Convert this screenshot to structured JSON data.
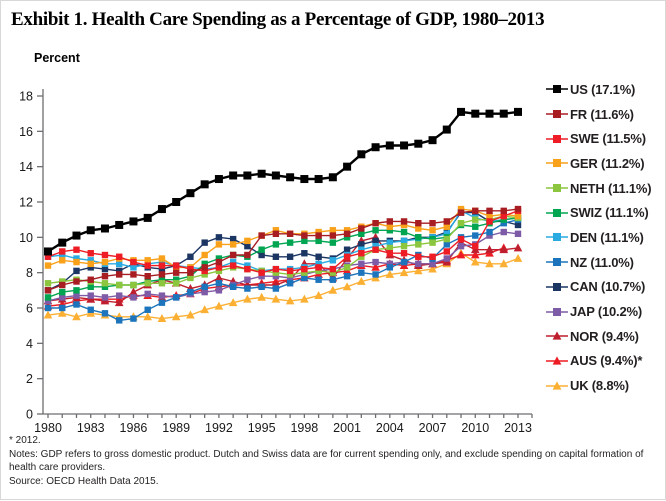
{
  "footnotes": {
    "asterisk": "* 2012.",
    "notes": "Notes: GDP refers to gross domestic product. Dutch and Swiss data are for current spending only, and exclude spending on capital formation of health care providers.",
    "source": "Source: OECD Health Data 2015."
  },
  "chart_data": {
    "type": "line",
    "title": "Exhibit 1. Health Care Spending as a Percentage of GDP, 1980–2013",
    "ylabel": "Percent",
    "xlabel": "",
    "ylim": [
      0,
      18
    ],
    "grid": false,
    "legend_position": "right",
    "x": [
      1980,
      1981,
      1982,
      1983,
      1984,
      1985,
      1986,
      1987,
      1988,
      1989,
      1990,
      1991,
      1992,
      1993,
      1994,
      1995,
      1996,
      1997,
      1998,
      1999,
      2000,
      2001,
      2002,
      2003,
      2004,
      2005,
      2006,
      2007,
      2008,
      2009,
      2010,
      2011,
      2012,
      2013
    ],
    "x_tick_labels": [
      "1980",
      "1983",
      "1986",
      "1989",
      "1992",
      "1995",
      "1998",
      "2001",
      "2004",
      "2007",
      "2010",
      "2013"
    ],
    "y_ticks": [
      0,
      2,
      4,
      6,
      8,
      10,
      12,
      14,
      16,
      18
    ],
    "series": [
      {
        "name": "US",
        "label": "US (17.1%)",
        "color": "#000000",
        "marker": "square",
        "values": [
          9.2,
          9.7,
          10.1,
          10.4,
          10.5,
          10.7,
          10.9,
          11.1,
          11.6,
          12.0,
          12.5,
          13.0,
          13.3,
          13.5,
          13.5,
          13.6,
          13.5,
          13.4,
          13.3,
          13.3,
          13.4,
          14.0,
          14.7,
          15.1,
          15.2,
          15.2,
          15.3,
          15.5,
          16.1,
          17.1,
          17.0,
          17.0,
          17.0,
          17.1
        ]
      },
      {
        "name": "FR",
        "label": "FR (11.6%)",
        "color": "#A81D22",
        "marker": "square",
        "values": [
          7.0,
          7.3,
          7.5,
          7.6,
          7.8,
          7.9,
          7.9,
          7.8,
          7.9,
          8.0,
          8.0,
          8.3,
          8.6,
          9.0,
          9.0,
          10.1,
          10.2,
          10.2,
          10.1,
          10.1,
          10.1,
          10.2,
          10.5,
          10.8,
          10.9,
          10.9,
          10.8,
          10.8,
          10.9,
          11.4,
          11.5,
          11.5,
          11.5,
          11.6
        ]
      },
      {
        "name": "SWE",
        "label": "SWE (11.5%)",
        "color": "#EE1C25",
        "marker": "square",
        "values": [
          8.9,
          9.2,
          9.3,
          9.1,
          9.0,
          8.9,
          8.6,
          8.4,
          8.4,
          8.4,
          8.2,
          8.1,
          8.3,
          8.4,
          8.2,
          8.0,
          8.2,
          8.1,
          8.2,
          8.3,
          8.2,
          8.9,
          9.1,
          9.3,
          9.1,
          9.1,
          8.9,
          8.9,
          9.2,
          9.9,
          9.5,
          10.9,
          11.2,
          11.5
        ]
      },
      {
        "name": "GER",
        "label": "GER (11.2%)",
        "color": "#F9A11B",
        "marker": "square",
        "values": [
          8.4,
          8.7,
          8.6,
          8.5,
          8.6,
          8.8,
          8.7,
          8.7,
          8.8,
          8.3,
          8.3,
          9.0,
          9.6,
          9.6,
          9.8,
          10.1,
          10.4,
          10.2,
          10.2,
          10.3,
          10.4,
          10.4,
          10.6,
          10.8,
          10.6,
          10.7,
          10.5,
          10.4,
          10.6,
          11.6,
          11.5,
          11.2,
          11.3,
          11.2
        ]
      },
      {
        "name": "NETH",
        "label": "NETH (11.1%)",
        "color": "#8CC63F",
        "marker": "square",
        "values": [
          7.4,
          7.5,
          7.6,
          7.5,
          7.4,
          7.3,
          7.3,
          7.4,
          7.4,
          7.4,
          7.7,
          7.9,
          8.1,
          8.3,
          8.2,
          8.1,
          8.0,
          7.9,
          8.0,
          8.1,
          8.0,
          8.3,
          8.9,
          9.3,
          9.4,
          9.5,
          9.6,
          9.7,
          9.9,
          10.8,
          11.0,
          11.0,
          11.2,
          11.1
        ]
      },
      {
        "name": "SWIZ",
        "label": "SWIZ (11.1%)",
        "color": "#00A551",
        "marker": "square",
        "values": [
          6.6,
          6.9,
          7.0,
          7.2,
          7.2,
          7.3,
          7.3,
          7.5,
          7.6,
          7.6,
          7.8,
          8.5,
          8.8,
          9.0,
          8.9,
          9.3,
          9.6,
          9.7,
          9.8,
          9.8,
          9.7,
          10.0,
          10.2,
          10.4,
          10.4,
          10.3,
          10.0,
          9.9,
          10.0,
          10.7,
          10.6,
          10.8,
          11.0,
          11.1
        ]
      },
      {
        "name": "DEN",
        "label": "DEN (11.1%)",
        "color": "#29ABE2",
        "marker": "square",
        "values": [
          8.9,
          9.0,
          8.8,
          8.7,
          8.5,
          8.5,
          8.3,
          8.5,
          8.6,
          8.4,
          8.3,
          8.2,
          8.3,
          8.6,
          8.4,
          8.1,
          8.2,
          8.2,
          8.3,
          8.5,
          8.7,
          9.0,
          9.3,
          9.5,
          9.7,
          9.8,
          9.9,
          10.0,
          10.2,
          11.5,
          11.1,
          10.9,
          11.0,
          11.1
        ]
      },
      {
        "name": "NZ",
        "label": "NZ (11.0%)",
        "color": "#1C75BC",
        "marker": "square",
        "values": [
          6.0,
          6.0,
          6.2,
          5.9,
          5.7,
          5.3,
          5.4,
          5.9,
          6.3,
          6.6,
          6.9,
          7.2,
          7.4,
          7.2,
          7.1,
          7.2,
          7.1,
          7.4,
          7.7,
          7.6,
          7.6,
          7.8,
          8.0,
          7.9,
          8.3,
          8.6,
          9.0,
          8.8,
          9.6,
          10.0,
          10.1,
          10.3,
          10.8,
          11.0
        ]
      },
      {
        "name": "CAN",
        "label": "CAN (10.7%)",
        "color": "#1C3664",
        "marker": "square",
        "values": [
          7.0,
          7.4,
          8.1,
          8.3,
          8.2,
          8.1,
          8.5,
          8.3,
          8.2,
          8.4,
          8.9,
          9.7,
          10.0,
          9.9,
          9.5,
          9.0,
          8.9,
          8.9,
          9.1,
          8.9,
          8.8,
          9.3,
          9.6,
          9.8,
          9.8,
          9.8,
          10.0,
          10.0,
          10.3,
          11.4,
          11.4,
          10.9,
          10.9,
          10.7
        ]
      },
      {
        "name": "JAP",
        "label": "JAP (10.2%)",
        "color": "#7D5BA6",
        "marker": "square",
        "values": [
          6.4,
          6.6,
          6.7,
          6.7,
          6.6,
          6.7,
          6.6,
          6.8,
          6.7,
          6.6,
          6.8,
          6.9,
          7.0,
          7.3,
          7.6,
          7.8,
          7.8,
          7.7,
          7.9,
          8.1,
          8.2,
          8.4,
          8.5,
          8.6,
          8.5,
          8.6,
          8.5,
          8.5,
          8.8,
          9.5,
          9.6,
          10.1,
          10.3,
          10.2
        ]
      },
      {
        "name": "NOR",
        "label": "NOR (9.4%)",
        "color": "#BE1E2D",
        "marker": "triangle",
        "values": [
          6.4,
          6.5,
          6.6,
          6.5,
          6.4,
          6.3,
          6.9,
          7.3,
          7.6,
          7.4,
          7.1,
          7.3,
          7.7,
          7.5,
          7.3,
          7.3,
          7.3,
          7.6,
          8.5,
          8.5,
          7.7,
          8.8,
          9.8,
          10.0,
          9.0,
          8.7,
          8.4,
          8.5,
          8.6,
          9.7,
          9.3,
          9.3,
          9.3,
          9.4
        ]
      },
      {
        "name": "AUS",
        "label": "AUS (9.4%)*",
        "color": "#ED1C24",
        "marker": "triangle",
        "values": [
          6.1,
          6.2,
          6.4,
          6.5,
          6.5,
          6.5,
          6.7,
          6.7,
          6.6,
          6.7,
          6.8,
          7.1,
          7.2,
          7.3,
          7.3,
          7.4,
          7.5,
          7.6,
          7.7,
          7.9,
          8.0,
          8.1,
          8.4,
          8.3,
          8.5,
          8.4,
          8.5,
          8.5,
          8.7,
          9.0,
          9.0,
          9.1,
          9.4,
          null
        ]
      },
      {
        "name": "UK",
        "label": "UK (8.8%)",
        "color": "#FBB034",
        "marker": "triangle",
        "values": [
          5.6,
          5.7,
          5.5,
          5.7,
          5.6,
          5.5,
          5.5,
          5.5,
          5.4,
          5.5,
          5.6,
          5.9,
          6.1,
          6.3,
          6.5,
          6.6,
          6.5,
          6.4,
          6.5,
          6.7,
          7.0,
          7.2,
          7.5,
          7.7,
          7.9,
          8.0,
          8.1,
          8.2,
          8.5,
          9.1,
          8.6,
          8.5,
          8.5,
          8.8
        ]
      }
    ]
  }
}
